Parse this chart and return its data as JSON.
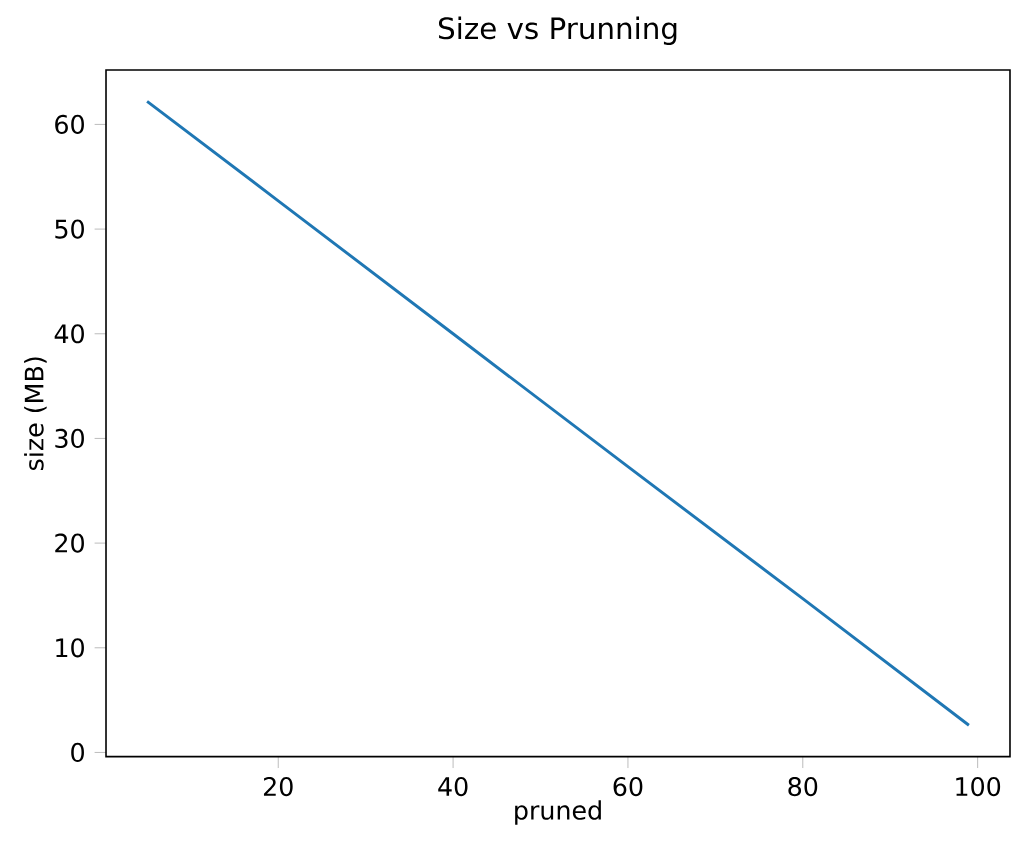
{
  "chart_data": {
    "type": "line",
    "title": "Size vs Prunning",
    "xlabel": "pruned",
    "ylabel": "size (MB)",
    "x": [
      5,
      20,
      40,
      60,
      80,
      99
    ],
    "series": [
      {
        "color": "#1f77b4",
        "values": [
          62.2,
          52.7,
          40.0,
          27.3,
          14.7,
          2.6
        ]
      }
    ],
    "xlim": [
      0.3,
      103.7
    ],
    "ylim": [
      -0.4,
      65.2
    ],
    "xticks": [
      20,
      40,
      60,
      80,
      100
    ],
    "yticks": [
      0,
      10,
      20,
      30,
      40,
      50,
      60
    ],
    "grid": false,
    "marker": "none",
    "line_style": "solid"
  }
}
